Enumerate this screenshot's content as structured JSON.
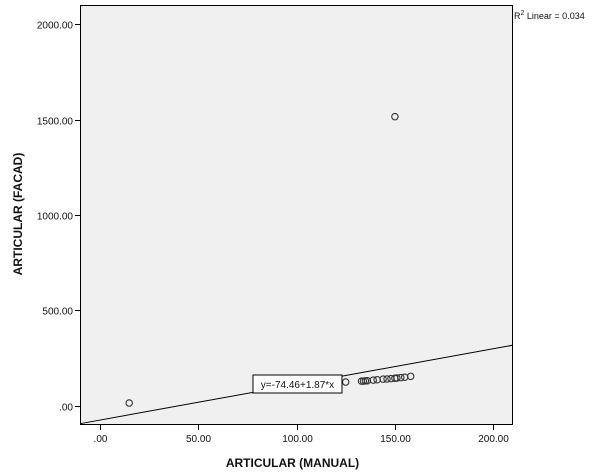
{
  "chart_data": {
    "type": "scatter",
    "xlabel": "ARTICULAR (MANUAL)",
    "ylabel": "ARTICULAR (FACAD)",
    "xlim": [
      -10,
      210
    ],
    "ylim": [
      -100,
      2100
    ],
    "x_ticks": [
      0,
      50,
      100,
      150,
      200
    ],
    "x_tick_labels": [
      ".00",
      "50.00",
      "100.00",
      "150.00",
      "200.00"
    ],
    "y_ticks": [
      0,
      500,
      1000,
      1500,
      2000
    ],
    "y_tick_labels": [
      ".00",
      "500.00",
      "1000.00",
      "1500.00",
      "2000.00"
    ],
    "grid": false,
    "points": [
      {
        "x": 15,
        "y": 15
      },
      {
        "x": 125,
        "y": 125
      },
      {
        "x": 133,
        "y": 130
      },
      {
        "x": 134,
        "y": 130
      },
      {
        "x": 135,
        "y": 131
      },
      {
        "x": 136,
        "y": 132
      },
      {
        "x": 139,
        "y": 135
      },
      {
        "x": 141,
        "y": 137
      },
      {
        "x": 144,
        "y": 140
      },
      {
        "x": 146,
        "y": 141
      },
      {
        "x": 148,
        "y": 143
      },
      {
        "x": 150,
        "y": 1515
      },
      {
        "x": 150,
        "y": 145
      },
      {
        "x": 151,
        "y": 146
      },
      {
        "x": 153,
        "y": 148
      },
      {
        "x": 155,
        "y": 150
      },
      {
        "x": 158,
        "y": 155
      }
    ],
    "fit_line": {
      "intercept": -74.46,
      "slope": 1.87,
      "equation_label": "y=-74.46+1.87*x"
    },
    "r2_label": {
      "prefix": "R",
      "superscript": "2",
      "text": " Linear = 0.034"
    },
    "colors": {
      "plot_background": "#f0f0f0",
      "frame": "#000000",
      "marker_stroke": "#333333",
      "fit_line": "#000000"
    }
  }
}
